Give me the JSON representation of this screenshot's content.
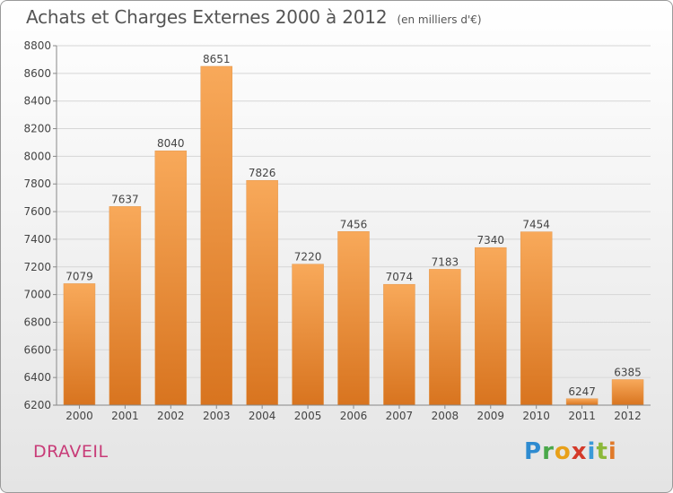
{
  "title": "Achats et Charges Externes 2000 à 2012",
  "unit": "(en milliers d'€)",
  "commune": "DRAVEIL",
  "logo": "Proxiti",
  "colors": {
    "bar_top": "#f8a95a",
    "bar_bottom": "#d8741f",
    "title": "#555555",
    "commune": "#c83c78"
  },
  "chart_data": {
    "type": "bar",
    "categories": [
      "2000",
      "2001",
      "2002",
      "2003",
      "2004",
      "2005",
      "2006",
      "2007",
      "2008",
      "2009",
      "2010",
      "2011",
      "2012"
    ],
    "values": [
      7079,
      7637,
      8040,
      8651,
      7826,
      7220,
      7456,
      7074,
      7183,
      7340,
      7454,
      6247,
      6385
    ],
    "ylim": [
      6200,
      8800
    ],
    "yticks": [
      6200,
      6400,
      6600,
      6800,
      7000,
      7200,
      7400,
      7600,
      7800,
      8000,
      8200,
      8400,
      8600,
      8800
    ],
    "grid": true,
    "legend": "none"
  }
}
